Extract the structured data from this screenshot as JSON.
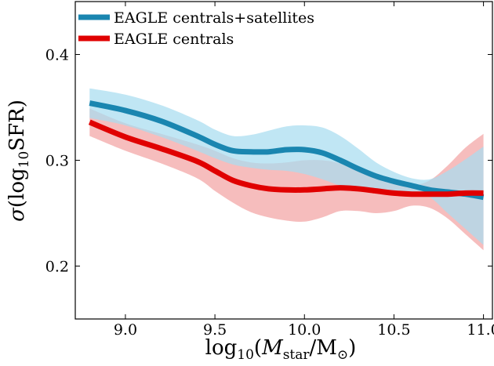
{
  "chart_data": {
    "type": "line",
    "title": "",
    "xlabel": "log10(Mstar/M⊙)",
    "ylabel": "σ(log10SFR)",
    "xlim": [
      8.72,
      11.05
    ],
    "ylim": [
      0.15,
      0.45
    ],
    "xticks": [
      9.0,
      9.5,
      10.0,
      10.5,
      11.0
    ],
    "xtick_labels": [
      "9.0",
      "9.5",
      "10.0",
      "10.5",
      "11.0"
    ],
    "yticks": [
      0.2,
      0.3,
      0.4
    ],
    "ytick_labels": [
      "0.2",
      "0.3",
      "0.4"
    ],
    "grid": false,
    "legend_position": "top-left",
    "series": [
      {
        "name": "EAGLE centrals+satellites",
        "color": "#1a86b0",
        "band_color": "#a8dcf0",
        "x": [
          8.8,
          9.0,
          9.2,
          9.4,
          9.5,
          9.6,
          9.7,
          9.8,
          9.9,
          10.0,
          10.1,
          10.2,
          10.3,
          10.4,
          10.5,
          10.6,
          10.7,
          10.8,
          10.9,
          11.0
        ],
        "y": [
          0.354,
          0.347,
          0.337,
          0.323,
          0.315,
          0.309,
          0.308,
          0.308,
          0.31,
          0.31,
          0.307,
          0.3,
          0.292,
          0.285,
          0.28,
          0.276,
          0.272,
          0.27,
          0.268,
          0.265
        ],
        "lower": [
          0.34,
          0.333,
          0.322,
          0.309,
          0.302,
          0.296,
          0.293,
          0.291,
          0.29,
          0.287,
          0.282,
          0.276,
          0.272,
          0.271,
          0.27,
          0.27,
          0.265,
          0.25,
          0.235,
          0.22
        ],
        "upper": [
          0.368,
          0.362,
          0.352,
          0.338,
          0.329,
          0.323,
          0.324,
          0.328,
          0.332,
          0.333,
          0.331,
          0.323,
          0.311,
          0.298,
          0.289,
          0.283,
          0.282,
          0.29,
          0.301,
          0.313
        ]
      },
      {
        "name": "EAGLE centrals",
        "color": "#e00000",
        "band_color": "#f4b2b2",
        "x": [
          8.8,
          9.0,
          9.2,
          9.4,
          9.5,
          9.6,
          9.7,
          9.8,
          9.9,
          10.0,
          10.1,
          10.2,
          10.3,
          10.4,
          10.5,
          10.6,
          10.7,
          10.8,
          10.9,
          11.0
        ],
        "y": [
          0.336,
          0.322,
          0.311,
          0.299,
          0.29,
          0.281,
          0.276,
          0.273,
          0.272,
          0.272,
          0.273,
          0.274,
          0.273,
          0.271,
          0.269,
          0.268,
          0.268,
          0.268,
          0.269,
          0.269
        ],
        "lower": [
          0.323,
          0.309,
          0.297,
          0.283,
          0.271,
          0.26,
          0.251,
          0.246,
          0.243,
          0.242,
          0.246,
          0.252,
          0.252,
          0.25,
          0.252,
          0.257,
          0.255,
          0.245,
          0.23,
          0.215
        ],
        "upper": [
          0.349,
          0.335,
          0.325,
          0.315,
          0.309,
          0.302,
          0.298,
          0.297,
          0.298,
          0.3,
          0.3,
          0.297,
          0.29,
          0.284,
          0.279,
          0.276,
          0.281,
          0.295,
          0.312,
          0.325
        ]
      }
    ]
  }
}
